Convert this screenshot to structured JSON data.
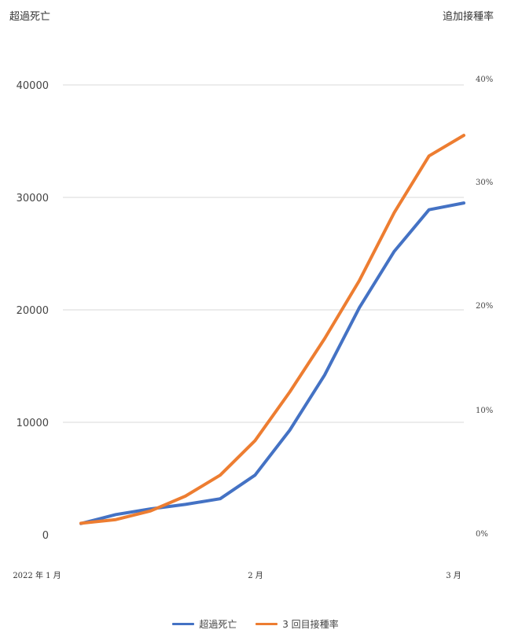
{
  "chart_data": {
    "type": "line",
    "ylabel_left": "超過死亡",
    "ylabel_right": "追加接種率",
    "x_ticks": [
      "2022 年 1 月",
      "2 月",
      "3 月"
    ],
    "y_left": {
      "lim": [
        0,
        40000
      ],
      "ticks": [
        "0",
        "10000",
        "20000",
        "30000",
        "40000"
      ]
    },
    "y_right": {
      "ticks": [
        "0%",
        "10%",
        "20%",
        "30%",
        "40%"
      ]
    },
    "grid": true,
    "legend_position": "bottom",
    "colors": {
      "excess": "#4472c4",
      "booster": "#ed7d31",
      "grid": "#d9d9d9"
    },
    "series": [
      {
        "name": "超過死亡",
        "axis": "left",
        "values": [
          1000,
          1800,
          2300,
          2700,
          3200,
          5300,
          9300,
          14200,
          20200,
          25200,
          28900,
          29500
        ]
      },
      {
        "name": "3 回目接種率",
        "axis": "right",
        "values": [
          0.8,
          1.1,
          1.8,
          3.0,
          4.7,
          7.5,
          11.7,
          16.8,
          22.0,
          27.5,
          32.5,
          34.5
        ]
      }
    ]
  }
}
